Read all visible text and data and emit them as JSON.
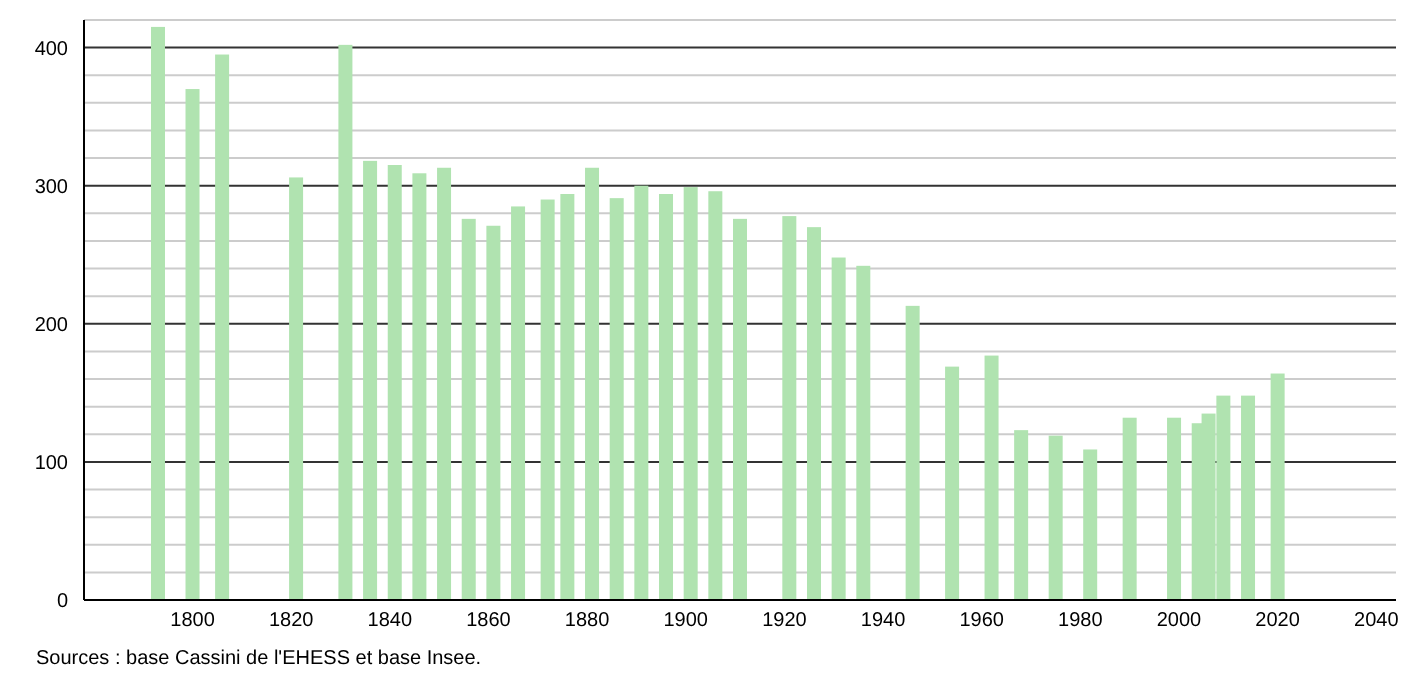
{
  "chart_data": {
    "type": "bar",
    "x": [
      1793,
      1800,
      1806,
      1821,
      1831,
      1836,
      1841,
      1846,
      1851,
      1856,
      1861,
      1866,
      1872,
      1876,
      1881,
      1886,
      1891,
      1896,
      1901,
      1906,
      1911,
      1921,
      1926,
      1931,
      1936,
      1946,
      1954,
      1962,
      1968,
      1975,
      1982,
      1990,
      1999,
      2004,
      2006,
      2009,
      2014,
      2020
    ],
    "values": [
      415,
      370,
      395,
      306,
      402,
      318,
      315,
      309,
      313,
      276,
      271,
      285,
      290,
      294,
      313,
      291,
      300,
      294,
      299,
      296,
      276,
      278,
      270,
      248,
      242,
      213,
      169,
      177,
      123,
      119,
      109,
      132,
      132,
      128,
      135,
      148,
      148,
      164
    ],
    "color": "#b0e3b0",
    "xlim": [
      1778,
      2044
    ],
    "xticks": [
      1800,
      1820,
      1840,
      1860,
      1880,
      1900,
      1920,
      1940,
      1960,
      1980,
      2000,
      2020,
      2040
    ],
    "ylim": [
      0,
      420
    ],
    "yticks": [
      0,
      {
        "value": 20,
        "label": null
      },
      {
        "value": 40,
        "label": null
      },
      {
        "value": 60,
        "label": null
      },
      {
        "value": 80,
        "label": null
      },
      100,
      {
        "value": 120,
        "label": null
      },
      {
        "value": 140,
        "label": null
      },
      {
        "value": 160,
        "label": null
      },
      {
        "value": 180,
        "label": null
      },
      200,
      {
        "value": 220,
        "label": null
      },
      {
        "value": 240,
        "label": null
      },
      {
        "value": 260,
        "label": null
      },
      {
        "value": 280,
        "label": null
      },
      300,
      {
        "value": 320,
        "label": null
      },
      {
        "value": 340,
        "label": null
      },
      {
        "value": 360,
        "label": null
      },
      {
        "value": 380,
        "label": null
      },
      400,
      {
        "value": 420,
        "label": null
      }
    ],
    "grid": "y",
    "annotations": [
      "Sources : base Cassini de l'EHESS et base Insee."
    ]
  }
}
